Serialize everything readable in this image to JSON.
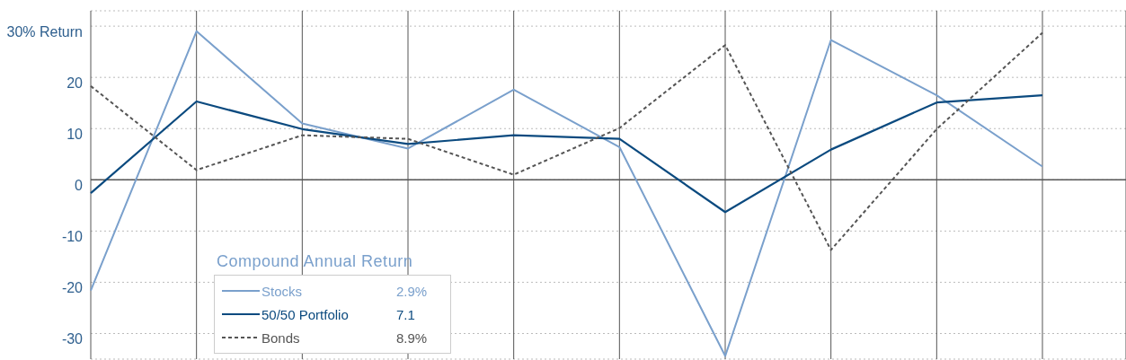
{
  "chart_data": {
    "type": "line",
    "categories": [
      null,
      null,
      null,
      null,
      null,
      null,
      null,
      null,
      null,
      null
    ],
    "series": [
      {
        "name": "Stocks",
        "color": "#7aa0cc",
        "line_style": "solid",
        "values": [
          -21.6,
          29.0,
          11.0,
          6.1,
          17.6,
          6.4,
          -34.4,
          27.3,
          16.5,
          2.6
        ]
      },
      {
        "name": "50/50 Portfolio",
        "color": "#0b4a7f",
        "line_style": "solid",
        "values": [
          -2.6,
          15.3,
          9.9,
          7.0,
          8.7,
          8.0,
          -6.3,
          5.9,
          15.1,
          16.5
        ]
      },
      {
        "name": "Bonds",
        "color": "#555555",
        "line_style": "dashed",
        "values": [
          18.3,
          1.9,
          8.7,
          8.0,
          1.0,
          10.1,
          26.3,
          -13.7,
          9.9,
          28.7
        ]
      }
    ],
    "ylim": [
      -35,
      33
    ],
    "yticks": [
      {
        "value": 30,
        "label": "30% Return"
      },
      20,
      10,
      0,
      -10,
      -20,
      -30
    ],
    "grid": true,
    "marker": "none",
    "legend": "bottom left",
    "legend_title": "Compound Annual Return",
    "annotations": [
      "2.9%",
      "7.1",
      "8.9%"
    ],
    "ref_lines": [
      {
        "axis": "y",
        "value": 0,
        "color": "#555555"
      }
    ]
  }
}
